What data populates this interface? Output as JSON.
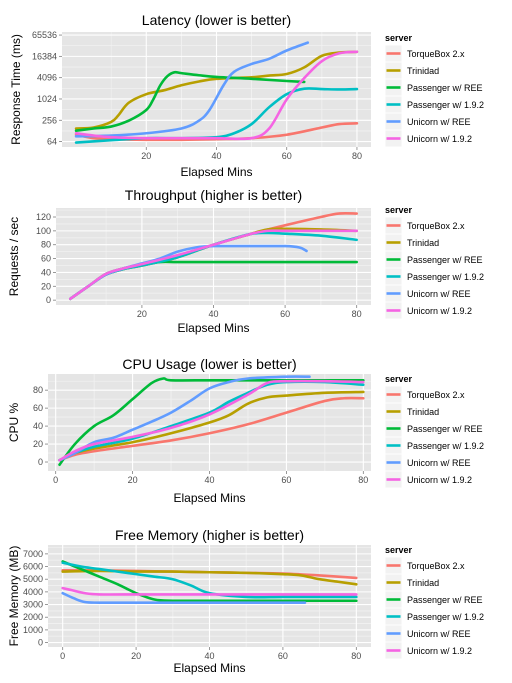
{
  "chart_data": [
    {
      "type": "line",
      "title": "Latency (lower is better)",
      "xlabel": "Elapsed Mins",
      "ylabel": "Response Time (ms)",
      "yscale": "log2",
      "xlim": [
        -4,
        84
      ],
      "ylim": [
        45,
        80000
      ],
      "xticks": [
        20,
        40,
        60,
        80
      ],
      "yticks": [
        64,
        256,
        1024,
        4096,
        16384,
        65536
      ],
      "ytick_labels": [
        "64",
        "256",
        "1024",
        "4096",
        "16384",
        "65536"
      ],
      "legend": {
        "title": "server",
        "placement": "right"
      },
      "series": [
        {
          "name": "TorqueBox 2.x",
          "color": "#F8766D",
          "x": [
            0,
            5,
            10,
            20,
            30,
            40,
            50,
            60,
            70,
            75,
            80
          ],
          "y": [
            100,
            80,
            75,
            72,
            72,
            75,
            80,
            100,
            160,
            200,
            210
          ]
        },
        {
          "name": "Trinidad",
          "color": "#B79F00",
          "x": [
            0,
            5,
            10,
            12,
            15,
            20,
            25,
            30,
            35,
            40,
            50,
            55,
            60,
            65,
            70,
            75,
            80
          ],
          "y": [
            150,
            160,
            230,
            350,
            800,
            1400,
            1800,
            2500,
            3200,
            3800,
            4200,
            4700,
            5200,
            8000,
            17000,
            21000,
            22000
          ]
        },
        {
          "name": "Passenger w/ REE",
          "color": "#00BA38",
          "x": [
            0,
            5,
            10,
            15,
            20,
            22,
            24,
            26,
            28,
            30,
            35,
            40,
            50,
            60,
            65
          ],
          "y": [
            130,
            150,
            170,
            250,
            500,
            1000,
            2500,
            4500,
            5800,
            5500,
            4800,
            4300,
            3800,
            3300,
            3100
          ]
        },
        {
          "name": "Passenger w/ 1.9.2",
          "color": "#00BFC4",
          "x": [
            0,
            10,
            20,
            30,
            40,
            45,
            50,
            55,
            60,
            65,
            70,
            75,
            80
          ],
          "y": [
            60,
            70,
            80,
            80,
            85,
            110,
            200,
            600,
            1400,
            2000,
            1950,
            1900,
            1950
          ]
        },
        {
          "name": "Unicorn w/ REE",
          "color": "#619CFF",
          "x": [
            0,
            10,
            20,
            30,
            35,
            38,
            42,
            45,
            50,
            55,
            60,
            66
          ],
          "y": [
            90,
            95,
            110,
            150,
            250,
            500,
            2500,
            6000,
            10000,
            14000,
            24000,
            40000
          ]
        },
        {
          "name": "Unicorn w/ 1.9.2",
          "color": "#F564E3",
          "x": [
            0,
            5,
            10,
            20,
            30,
            40,
            50,
            55,
            60,
            65,
            70,
            75,
            80
          ],
          "y": [
            110,
            95,
            85,
            80,
            80,
            80,
            80,
            150,
            1000,
            4000,
            12000,
            20000,
            22000
          ]
        }
      ]
    },
    {
      "type": "line",
      "title": "Throughput (higher is better)",
      "xlabel": "Elapsed Mins",
      "ylabel": "Requests / sec",
      "xlim": [
        -4,
        84
      ],
      "ylim": [
        -7,
        133
      ],
      "xticks": [
        20,
        40,
        60,
        80
      ],
      "yticks": [
        0,
        20,
        40,
        60,
        80,
        100,
        120
      ],
      "ytick_labels": [
        "0",
        "20",
        "40",
        "60",
        "80",
        "100",
        "120"
      ],
      "legend": {
        "title": "server",
        "placement": "right"
      },
      "series": [
        {
          "name": "TorqueBox 2.x",
          "color": "#F8766D",
          "x": [
            0,
            5,
            10,
            15,
            20,
            30,
            40,
            50,
            60,
            70,
            75,
            80
          ],
          "y": [
            2,
            20,
            37,
            45,
            50,
            62,
            80,
            95,
            108,
            120,
            125,
            125
          ]
        },
        {
          "name": "Trinidad",
          "color": "#B79F00",
          "x": [
            0,
            5,
            10,
            15,
            20,
            30,
            40,
            50,
            55,
            60,
            70,
            80
          ],
          "y": [
            2,
            20,
            37,
            45,
            50,
            62,
            80,
            95,
            102,
            103,
            102,
            100
          ]
        },
        {
          "name": "Passenger w/ REE",
          "color": "#00BA38",
          "x": [
            0,
            5,
            10,
            15,
            20,
            25,
            30,
            40,
            50,
            60,
            70,
            80
          ],
          "y": [
            2,
            20,
            38,
            46,
            51,
            55,
            55,
            55,
            55,
            55,
            55,
            55
          ]
        },
        {
          "name": "Passenger w/ 1.9.2",
          "color": "#00BFC4",
          "x": [
            0,
            5,
            10,
            15,
            20,
            30,
            40,
            50,
            55,
            60,
            70,
            80
          ],
          "y": [
            2,
            20,
            37,
            45,
            50,
            62,
            80,
            95,
            97,
            96,
            93,
            87
          ]
        },
        {
          "name": "Unicorn w/ REE",
          "color": "#619CFF",
          "x": [
            0,
            5,
            10,
            15,
            20,
            25,
            30,
            35,
            40,
            50,
            60,
            64,
            66
          ],
          "y": [
            2,
            20,
            37,
            46,
            53,
            60,
            70,
            76,
            78,
            78,
            78,
            76,
            71
          ]
        },
        {
          "name": "Unicorn w/ 1.9.2",
          "color": "#F564E3",
          "x": [
            0,
            5,
            10,
            15,
            20,
            30,
            40,
            50,
            55,
            60,
            70,
            80
          ],
          "y": [
            2,
            20,
            38,
            46,
            52,
            65,
            80,
            95,
            100,
            100,
            100,
            100
          ]
        }
      ]
    },
    {
      "type": "line",
      "title": "CPU Usage (lower is better)",
      "xlabel": "Elapsed Mins",
      "ylabel": "CPU %",
      "xlim": [
        -2,
        82
      ],
      "ylim": [
        -10,
        98
      ],
      "xticks": [
        0,
        20,
        40,
        60,
        80
      ],
      "yticks": [
        0,
        20,
        40,
        60,
        80
      ],
      "ytick_labels": [
        "0",
        "20",
        "40",
        "60",
        "80"
      ],
      "legend": {
        "title": "server",
        "placement": "right"
      },
      "series": [
        {
          "name": "TorqueBox 2.x",
          "color": "#F8766D",
          "x": [
            1,
            5,
            10,
            20,
            30,
            40,
            50,
            60,
            70,
            75,
            80
          ],
          "y": [
            2,
            8,
            12,
            18,
            24,
            32,
            42,
            55,
            68,
            71,
            71
          ]
        },
        {
          "name": "Trinidad",
          "color": "#B79F00",
          "x": [
            1,
            5,
            10,
            20,
            30,
            40,
            45,
            50,
            55,
            60,
            70,
            80
          ],
          "y": [
            2,
            10,
            15,
            22,
            32,
            44,
            52,
            65,
            72,
            74,
            77,
            78
          ]
        },
        {
          "name": "Passenger w/ REE",
          "color": "#00BA38",
          "x": [
            1,
            5,
            10,
            15,
            20,
            25,
            28,
            30,
            40,
            50,
            60,
            70,
            80
          ],
          "y": [
            -3,
            20,
            40,
            52,
            70,
            88,
            93,
            91,
            91,
            91,
            91,
            91,
            91
          ]
        },
        {
          "name": "Passenger w/ 1.9.2",
          "color": "#00BFC4",
          "x": [
            1,
            5,
            10,
            20,
            30,
            40,
            45,
            50,
            55,
            60,
            70,
            80
          ],
          "y": [
            2,
            10,
            17,
            26,
            40,
            55,
            67,
            77,
            86,
            89,
            89,
            86
          ]
        },
        {
          "name": "Unicorn w/ REE",
          "color": "#619CFF",
          "x": [
            1,
            5,
            10,
            15,
            20,
            25,
            30,
            35,
            40,
            45,
            50,
            60,
            66
          ],
          "y": [
            2,
            10,
            22,
            27,
            36,
            45,
            55,
            68,
            82,
            89,
            93,
            95,
            95
          ]
        },
        {
          "name": "Unicorn w/ 1.9.2",
          "color": "#F564E3",
          "x": [
            1,
            5,
            10,
            20,
            30,
            40,
            50,
            55,
            60,
            70,
            80
          ],
          "y": [
            2,
            12,
            20,
            28,
            38,
            53,
            75,
            88,
            90,
            90,
            89
          ]
        }
      ]
    },
    {
      "type": "line",
      "title": "Free Memory (higher is better)",
      "xlabel": "Elapsed Mins",
      "ylabel": "Free Memory (MB)",
      "xlim": [
        -4,
        84
      ],
      "ylim": [
        -350,
        7700
      ],
      "xticks": [
        0,
        20,
        40,
        60,
        80
      ],
      "yticks": [
        0,
        1000,
        2000,
        3000,
        4000,
        5000,
        6000,
        7000
      ],
      "ytick_labels": [
        "0",
        "1000",
        "2000",
        "3000",
        "4000",
        "5000",
        "6000",
        "7000"
      ],
      "legend": {
        "title": "server",
        "placement": "right"
      },
      "series": [
        {
          "name": "TorqueBox 2.x",
          "color": "#F8766D",
          "x": [
            0,
            10,
            20,
            30,
            40,
            50,
            60,
            70,
            80
          ],
          "y": [
            5700,
            5700,
            5650,
            5600,
            5550,
            5500,
            5450,
            5300,
            5100
          ]
        },
        {
          "name": "Trinidad",
          "color": "#B79F00",
          "x": [
            0,
            10,
            20,
            30,
            40,
            50,
            60,
            65,
            70,
            75,
            80
          ],
          "y": [
            5600,
            5650,
            5600,
            5600,
            5550,
            5500,
            5400,
            5300,
            5000,
            4800,
            4600
          ]
        },
        {
          "name": "Passenger w/ REE",
          "color": "#00BA38",
          "x": [
            0,
            5,
            10,
            15,
            20,
            25,
            30,
            40,
            50,
            60,
            70,
            80
          ],
          "y": [
            6400,
            5800,
            5200,
            4600,
            3900,
            3400,
            3300,
            3300,
            3300,
            3300,
            3300,
            3300
          ]
        },
        {
          "name": "Passenger w/ 1.9.2",
          "color": "#00BFC4",
          "x": [
            0,
            5,
            10,
            20,
            25,
            30,
            35,
            40,
            50,
            60,
            70,
            80
          ],
          "y": [
            6300,
            6000,
            5800,
            5400,
            5200,
            5000,
            4500,
            3900,
            3600,
            3600,
            3600,
            3600
          ]
        },
        {
          "name": "Unicorn w/ REE",
          "color": "#619CFF",
          "x": [
            0,
            3,
            6,
            10,
            20,
            30,
            40,
            50,
            60,
            66
          ],
          "y": [
            3900,
            3500,
            3200,
            3150,
            3150,
            3150,
            3150,
            3150,
            3150,
            3150
          ]
        },
        {
          "name": "Unicorn w/ 1.9.2",
          "color": "#F564E3",
          "x": [
            0,
            3,
            6,
            10,
            20,
            30,
            40,
            50,
            60,
            70,
            80
          ],
          "y": [
            4300,
            4100,
            3900,
            3800,
            3800,
            3800,
            3800,
            3800,
            3800,
            3800,
            3800
          ]
        }
      ]
    }
  ]
}
